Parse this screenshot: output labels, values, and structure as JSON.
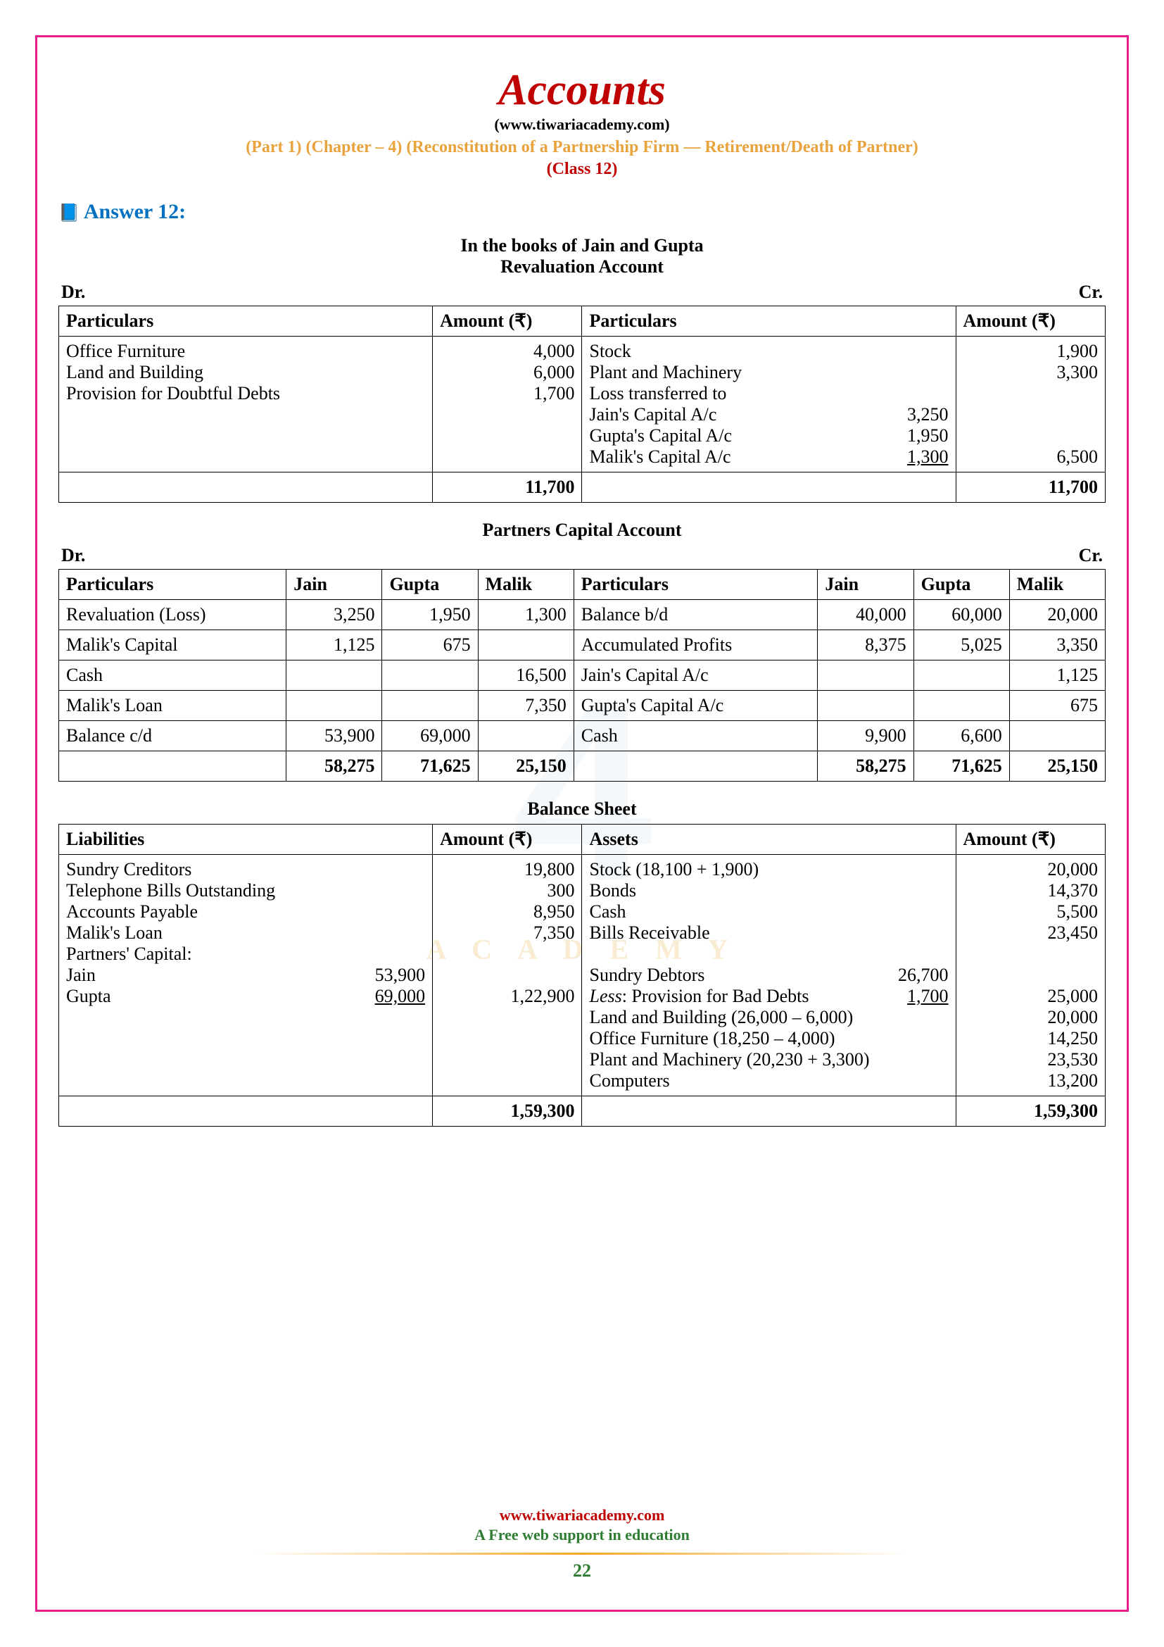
{
  "header": {
    "title": "Accounts",
    "site": "(www.tiwariacademy.com)",
    "chapter": "(Part 1) (Chapter – 4) (Reconstitution of a Partnership Firm — Retirement/Death of Partner)",
    "class": "(Class 12)"
  },
  "answer_heading": "Answer 12:",
  "books_of": "In the books of Jain and Gupta",
  "revaluation": {
    "title": "Revaluation Account",
    "dr": "Dr.",
    "cr": "Cr.",
    "head_part_l": "Particulars",
    "head_amt_l": "Amount (₹)",
    "head_part_r": "Particulars",
    "head_amt_r": "Amount (₹)",
    "left": [
      {
        "p": "Office Furniture",
        "a": "4,000"
      },
      {
        "p": "Land and Building",
        "a": "6,000"
      },
      {
        "p": "Provision for Doubtful Debts",
        "a": "1,700"
      }
    ],
    "right_simple": [
      {
        "p": "Stock",
        "a": "1,900"
      },
      {
        "p": "Plant and Machinery",
        "a": "3,300"
      }
    ],
    "loss_label": "Loss transferred to",
    "loss_lines": [
      {
        "p": "Jain's Capital A/c",
        "sub": "3,250"
      },
      {
        "p": "Gupta's Capital A/c",
        "sub": "1,950"
      },
      {
        "p": "Malik's Capital A/c",
        "sub": "1,300",
        "underline": true
      }
    ],
    "loss_total": "6,500",
    "total_l": "11,700",
    "total_r": "11,700"
  },
  "capital": {
    "title": "Partners Capital Account",
    "dr": "Dr.",
    "cr": "Cr.",
    "cols_l": [
      "Particulars",
      "Jain",
      "Gupta",
      "Malik"
    ],
    "cols_r": [
      "Particulars",
      "Jain",
      "Gupta",
      "Malik"
    ],
    "rows_l": [
      {
        "p": "Revaluation (Loss)",
        "j": "3,250",
        "g": "1,950",
        "m": "1,300"
      },
      {
        "p": "Malik's Capital",
        "j": "1,125",
        "g": "675",
        "m": ""
      },
      {
        "p": "Cash",
        "j": "",
        "g": "",
        "m": "16,500"
      },
      {
        "p": "Malik's Loan",
        "j": "",
        "g": "",
        "m": "7,350"
      },
      {
        "p": "Balance c/d",
        "j": "53,900",
        "g": "69,000",
        "m": ""
      }
    ],
    "rows_r": [
      {
        "p": "Balance b/d",
        "j": "40,000",
        "g": "60,000",
        "m": "20,000"
      },
      {
        "p": "Accumulated Profits",
        "j": "8,375",
        "g": "5,025",
        "m": "3,350"
      },
      {
        "p": "Jain's Capital A/c",
        "j": "",
        "g": "",
        "m": "1,125"
      },
      {
        "p": "Gupta's Capital A/c",
        "j": "",
        "g": "",
        "m": "675"
      },
      {
        "p": "Cash",
        "j": "9,900",
        "g": "6,600",
        "m": ""
      }
    ],
    "total_l": {
      "j": "58,275",
      "g": "71,625",
      "m": "25,150"
    },
    "total_r": {
      "j": "58,275",
      "g": "71,625",
      "m": "25,150"
    }
  },
  "balance_sheet": {
    "title": "Balance Sheet",
    "head_liab": "Liabilities",
    "head_amt_l": "Amount (₹)",
    "head_assets": "Assets",
    "head_amt_r": "Amount (₹)",
    "liab_rows": [
      {
        "p": "Sundry Creditors",
        "a": "19,800"
      },
      {
        "p": "Telephone Bills Outstanding",
        "a": "300"
      },
      {
        "p": "Accounts Payable",
        "a": "8,950"
      },
      {
        "p": "Malik's Loan",
        "a": "7,350"
      }
    ],
    "partners_cap_label": "Partners' Capital:",
    "partners_cap": [
      {
        "p": "Jain",
        "sub": "53,900"
      },
      {
        "p": "Gupta",
        "sub": "69,000",
        "underline": true
      }
    ],
    "partners_cap_total": "1,22,900",
    "asset_rows": [
      {
        "p": "Stock (18,100 + 1,900)",
        "a": "20,000"
      },
      {
        "p": "Bonds",
        "a": "14,370"
      },
      {
        "p": "Cash",
        "a": "5,500"
      },
      {
        "p": "Bills Receivable",
        "a": "23,450"
      }
    ],
    "debtors_label": "Sundry Debtors",
    "debtors_val": "26,700",
    "less_prov_label": "Less: Provision for Bad Debts",
    "less_prov_val": "1,700",
    "debtors_net": "25,000",
    "asset_rows2": [
      {
        "p": "Land and Building (26,000 – 6,000)",
        "a": "20,000"
      },
      {
        "p": "Office Furniture (18,250 – 4,000)",
        "a": "14,250"
      },
      {
        "p": "Plant and Machinery (20,230 + 3,300)",
        "a": "23,530"
      },
      {
        "p": "Computers",
        "a": "13,200"
      }
    ],
    "total_l": "1,59,300",
    "total_r": "1,59,300"
  },
  "footer": {
    "site": "www.tiwariacademy.com",
    "tag": "A Free web support in education",
    "page": "22"
  },
  "watermark": "4",
  "watermark_sub": "A C A D E M Y"
}
